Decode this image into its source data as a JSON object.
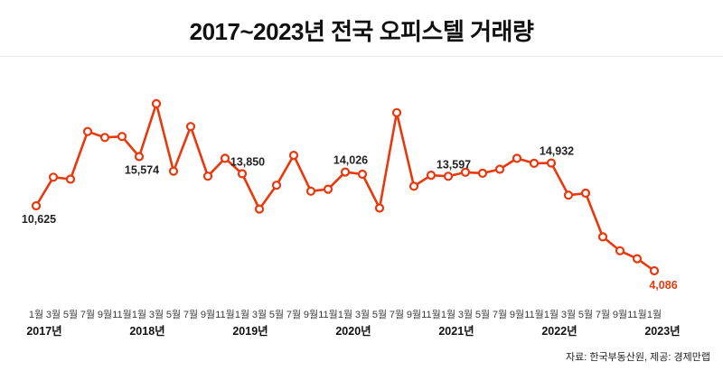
{
  "title": "2017~2023년 전국 오피스텔 거래량",
  "source_note": "자료: 한국부동산원, 제공: 경제만랩",
  "colors": {
    "line": "#e8380d",
    "marker_fill": "#ffffff",
    "data_label": "#222222",
    "emphasis_label": "#e8380d",
    "month_tick": "#3c3c3c",
    "year_tick": "#111111",
    "divider": "#ececec"
  },
  "chart_data": {
    "type": "line",
    "title": "2017~2023년 전국 오피스텔 거래량",
    "xlabel": "",
    "ylabel": "",
    "grid": false,
    "legend": "none",
    "ylim": [
      3000,
      22000
    ],
    "month_tick_labels": [
      "1월",
      "3월",
      "5월",
      "7월",
      "9월",
      "11월"
    ],
    "year_labels": [
      "2017년",
      "2018년",
      "2019년",
      "2020년",
      "2021년",
      "2022년",
      "2023년"
    ],
    "x": [
      "2017-01",
      "2017-03",
      "2017-05",
      "2017-07",
      "2017-09",
      "2017-11",
      "2018-01",
      "2018-03",
      "2018-05",
      "2018-07",
      "2018-09",
      "2018-11",
      "2019-01",
      "2019-03",
      "2019-05",
      "2019-07",
      "2019-09",
      "2019-11",
      "2020-01",
      "2020-03",
      "2020-05",
      "2020-07",
      "2020-09",
      "2020-11",
      "2021-01",
      "2021-03",
      "2021-05",
      "2021-07",
      "2021-09",
      "2021-11",
      "2022-01",
      "2022-03",
      "2022-05",
      "2022-07",
      "2022-09",
      "2022-11",
      "2023-01"
    ],
    "series": [
      {
        "name": "전국 오피스텔 거래량",
        "values": [
          10625,
          13500,
          13300,
          18100,
          17500,
          17600,
          15574,
          20900,
          14100,
          18600,
          13600,
          15400,
          13850,
          10300,
          12700,
          15700,
          12100,
          12300,
          14026,
          13800,
          10400,
          20000,
          12600,
          13700,
          13597,
          14000,
          13900,
          14300,
          15400,
          14900,
          14932,
          11700,
          11900,
          7500,
          6100,
          5300,
          4086
        ]
      }
    ],
    "annotations": [
      {
        "index": 0,
        "text": "10,625",
        "placement": "below",
        "emphasis": false
      },
      {
        "index": 6,
        "text": "15,574",
        "placement": "below",
        "emphasis": false
      },
      {
        "index": 12,
        "text": "13,850",
        "placement": "above",
        "emphasis": false
      },
      {
        "index": 18,
        "text": "14,026",
        "placement": "above",
        "emphasis": false
      },
      {
        "index": 24,
        "text": "13,597",
        "placement": "above",
        "emphasis": false
      },
      {
        "index": 30,
        "text": "14,932",
        "placement": "above",
        "emphasis": false
      },
      {
        "index": 36,
        "text": "4,086",
        "placement": "below-right",
        "emphasis": true
      }
    ]
  }
}
